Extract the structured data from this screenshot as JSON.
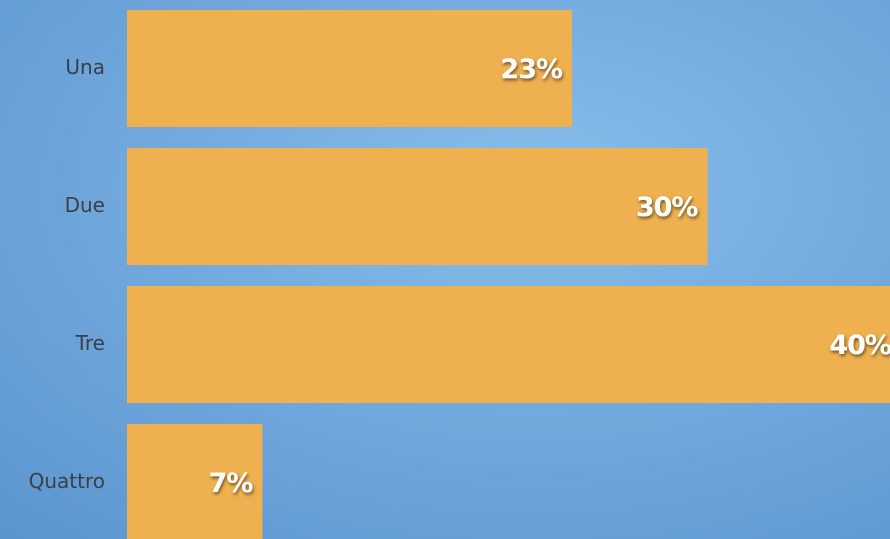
{
  "chart_data": {
    "type": "bar",
    "orientation": "horizontal",
    "categories": [
      "Una",
      "Due",
      "Tre",
      "Quattro"
    ],
    "values": [
      23,
      30,
      40,
      7
    ],
    "value_labels": [
      "23%",
      "30%",
      "40%",
      "7%"
    ],
    "color": "#efb04f"
  }
}
